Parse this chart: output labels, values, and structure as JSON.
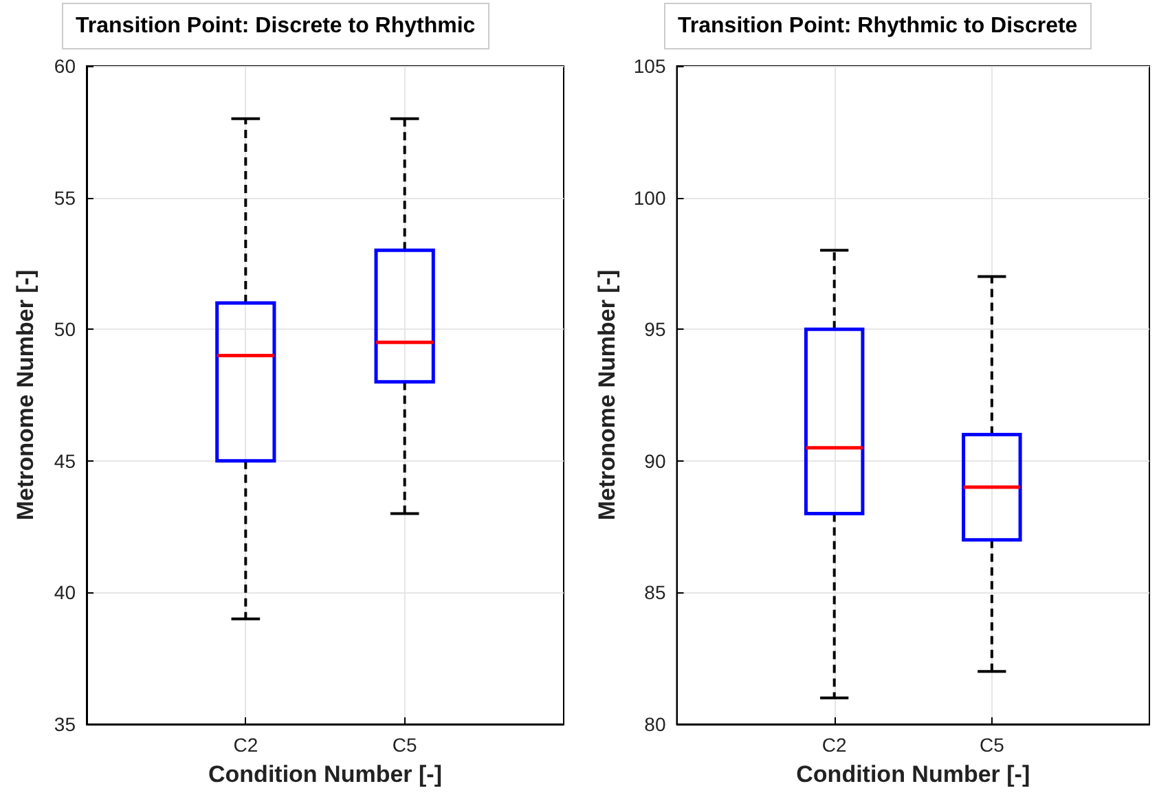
{
  "chart_data": [
    {
      "type": "box",
      "title": "Transition Point: Discrete to Rhythmic",
      "xlabel": "Condition Number [-]",
      "ylabel": "Metronome Number [-]",
      "categories": [
        "C2",
        "C5"
      ],
      "color": "#0000ff",
      "ylim": [
        35,
        60
      ],
      "yticks": [
        35,
        40,
        45,
        50,
        55,
        60
      ],
      "grid": true,
      "boxes": [
        {
          "low": 39,
          "q1": 45,
          "median": 49,
          "q3": 51,
          "high": 58
        },
        {
          "low": 43,
          "q1": 48,
          "median": 49.5,
          "q3": 53,
          "high": 58
        }
      ]
    },
    {
      "type": "box",
      "title": "Transition Point: Rhythmic to Discrete",
      "xlabel": "Condition Number [-]",
      "ylabel": "Metronome Number [-]",
      "categories": [
        "C2",
        "C5"
      ],
      "color": "#0000ff",
      "ylim": [
        80,
        105
      ],
      "yticks": [
        80,
        85,
        90,
        95,
        100,
        105
      ],
      "grid": true,
      "boxes": [
        {
          "low": 81,
          "q1": 88,
          "median": 90.5,
          "q3": 95,
          "high": 98
        },
        {
          "low": 82,
          "q1": 87,
          "median": 89,
          "q3": 91,
          "high": 97
        }
      ]
    }
  ]
}
